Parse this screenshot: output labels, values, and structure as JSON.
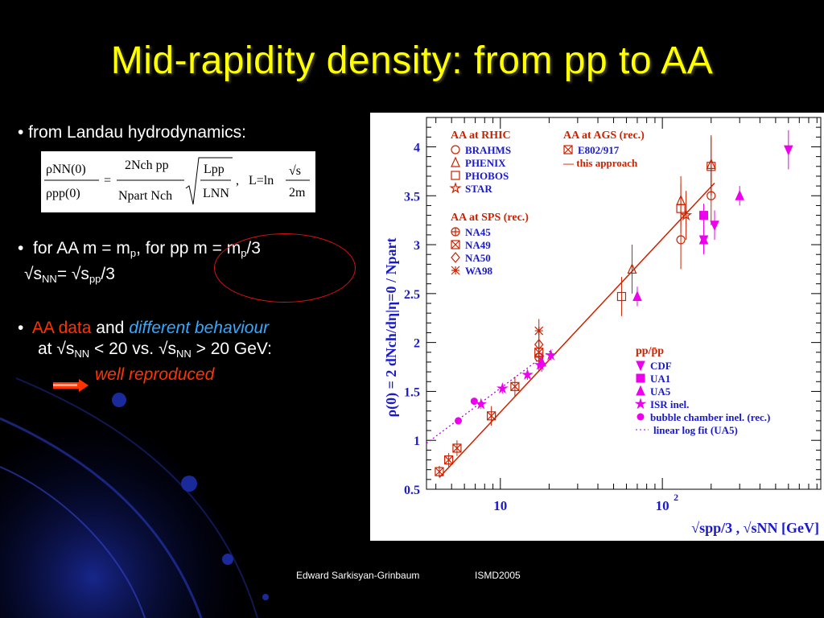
{
  "slide": {
    "title": "Mid-rapidity density: from pp to AA",
    "bullet1": "• from Landau hydrodynamics:",
    "formula": {
      "lhs_num": "ρNN(0)",
      "lhs_den": "ρpp(0)",
      "mid_num": "2Nch pp",
      "mid_den": "Npart Nch",
      "sqrt_num": "Lpp",
      "sqrt_den": "LNN",
      "L_eq": "L=ln",
      "L_num": "√s",
      "L_den": "2m"
    },
    "bullet2": {
      "dot": "•",
      "t1": "for AA m = m",
      "s1": "p",
      "t2": ", for pp m = m",
      "s2": "p",
      "t3": "/3",
      "t4": "√s",
      "s4": "NN",
      "t5": "= √s",
      "s5": "pp",
      "t6": "/3"
    },
    "bullet3": {
      "dot": "•",
      "aa": "AA",
      "data": "data",
      "and": "and",
      "diff": "different behaviour",
      "at": "at √s",
      "s_a": "NN",
      "mid": " < 20 vs. √s",
      "s_b": "NN",
      "end": " > 20 GeV:",
      "well": "well reproduced"
    },
    "footer": {
      "author": "Edward Sarkisyan-Grinbaum",
      "conf": "ISMD2005"
    }
  },
  "chart_data": {
    "type": "scatter",
    "xscale": "log",
    "xlim": [
      3.5,
      950
    ],
    "ylim": [
      0.5,
      4.3
    ],
    "ylabel": "ρ(0) = 2 dNch/dη|η=0 / Npart",
    "xlabel": "√spp/3 , √sNN [GeV]",
    "xticks": [
      {
        "v": 10,
        "label": "10"
      },
      {
        "v": 100,
        "label": "10",
        "sup": "2"
      }
    ],
    "yticks": [
      {
        "v": 0.5,
        "label": "0.5"
      },
      {
        "v": 1,
        "label": "1"
      },
      {
        "v": 1.5,
        "label": "1.5"
      },
      {
        "v": 2,
        "label": "2"
      },
      {
        "v": 2.5,
        "label": "2.5"
      },
      {
        "v": 3,
        "label": "3"
      },
      {
        "v": 3.5,
        "label": "3.5"
      },
      {
        "v": 4,
        "label": "4"
      }
    ],
    "legend_groups": [
      {
        "heading": "AA at RHIC",
        "entries": [
          "BRAHMS",
          "PHENIX",
          "PHOBOS",
          "STAR"
        ]
      },
      {
        "heading": "AA at SPS (rec.)",
        "entries": [
          "NA45",
          "NA49",
          "NA50",
          "WA98"
        ]
      },
      {
        "heading": "AA at AGS (rec.)",
        "entries": [
          "E802/917",
          "— this approach"
        ]
      },
      {
        "heading": "pp/p̄p",
        "entries": [
          "CDF",
          "UA1",
          "UA5",
          "ISR inel.",
          "bubble chamber inel. (rec.)",
          "linear log fit (UA5)"
        ]
      }
    ],
    "colors": {
      "aa": "#cc2200",
      "pp": "#ee00ee",
      "heading": "#cc2200",
      "legend_text": "#1a1acc",
      "axis_text": "#1a1acc"
    },
    "series": [
      {
        "name": "BRAHMS",
        "group": "aa",
        "marker": "circle",
        "points": [
          [
            130,
            3.05,
            0.3
          ],
          [
            200,
            3.5,
            0.3
          ]
        ]
      },
      {
        "name": "PHENIX",
        "group": "aa",
        "marker": "triangle",
        "points": [
          [
            65,
            2.75,
            0.25
          ],
          [
            130,
            3.45,
            0.25
          ],
          [
            200,
            3.82,
            0.3
          ]
        ]
      },
      {
        "name": "PHOBOS",
        "group": "aa",
        "marker": "square",
        "points": [
          [
            56,
            2.47,
            0.2
          ],
          [
            130,
            3.37,
            0.25
          ],
          [
            200,
            3.8,
            0.3
          ]
        ]
      },
      {
        "name": "STAR",
        "group": "aa",
        "marker": "star",
        "points": [
          [
            140,
            3.3,
            0.25
          ]
        ]
      },
      {
        "name": "NA45",
        "group": "aa",
        "marker": "plus",
        "points": [
          [
            17.3,
            1.85,
            0.15
          ]
        ]
      },
      {
        "name": "NA49",
        "group": "aa",
        "marker": "xsquare",
        "points": [
          [
            8.8,
            1.25,
            0.1
          ],
          [
            12.3,
            1.55,
            0.1
          ],
          [
            17.3,
            1.9,
            0.12
          ]
        ]
      },
      {
        "name": "NA50",
        "group": "aa",
        "marker": "diamond",
        "points": [
          [
            17.3,
            1.98,
            0.15
          ]
        ]
      },
      {
        "name": "WA98",
        "group": "aa",
        "marker": "asterisk",
        "points": [
          [
            17.3,
            2.12,
            0.12
          ]
        ]
      },
      {
        "name": "E802/917",
        "group": "aa",
        "marker": "xsquare",
        "points": [
          [
            4.2,
            0.68,
            0.06
          ],
          [
            4.8,
            0.8,
            0.07
          ],
          [
            5.4,
            0.92,
            0.08
          ]
        ]
      },
      {
        "name": "CDF",
        "group": "pp",
        "marker": "invtriangle",
        "points": [
          [
            180,
            3.05,
            0.15
          ],
          [
            210,
            3.2,
            0.15
          ],
          [
            600,
            3.97,
            0.2
          ]
        ]
      },
      {
        "name": "UA1",
        "group": "pp",
        "marker": "fsquare",
        "points": [
          [
            180,
            3.3,
            0.12
          ]
        ]
      },
      {
        "name": "UA5",
        "group": "pp",
        "marker": "ftriangle",
        "points": [
          [
            18,
            1.8,
            0.1
          ],
          [
            70,
            2.47,
            0.1
          ],
          [
            180,
            3.05,
            0.12
          ],
          [
            300,
            3.5,
            0.1
          ]
        ]
      },
      {
        "name": "ISR inel.",
        "group": "pp",
        "marker": "fstar",
        "points": [
          [
            7.6,
            1.37,
            0.05
          ],
          [
            10.3,
            1.53,
            0.05
          ],
          [
            14.7,
            1.67,
            0.05
          ],
          [
            17.6,
            1.77,
            0.05
          ],
          [
            20.5,
            1.87,
            0.05
          ]
        ]
      },
      {
        "name": "bubble chamber inel. (rec.)",
        "group": "pp",
        "marker": "fcircle",
        "points": [
          [
            5.5,
            1.2,
            0.03
          ],
          [
            6.9,
            1.4,
            0.03
          ]
        ]
      }
    ],
    "lines": [
      {
        "name": "this approach",
        "style": "solid",
        "color": "#cc2200",
        "points": [
          [
            4.2,
            0.62
          ],
          [
            210,
            3.63
          ]
        ]
      },
      {
        "name": "linear log fit (UA5)",
        "style": "dotted",
        "color": "#aa00cc",
        "points": [
          [
            3.5,
            0.97
          ],
          [
            21,
            1.93
          ]
        ]
      }
    ]
  }
}
